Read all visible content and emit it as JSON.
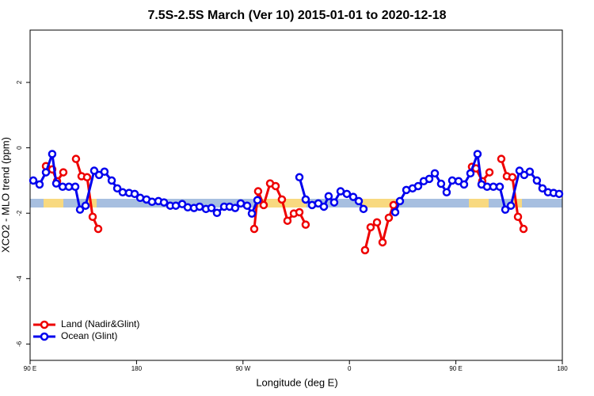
{
  "chart_data": {
    "type": "line",
    "title": "7.5S-2.5S March (Ver 10)   2015-01-01 to 2020-12-18",
    "x_label": "Longitude (deg E)",
    "y_label": "XCO2 - MLO trend (ppm)",
    "xlim": [
      90,
      540
    ],
    "ylim": [
      -6.5,
      3.6
    ],
    "xticks": [
      {
        "value": 90,
        "label": "90 E"
      },
      180,
      {
        "value": 270,
        "label": "90 W"
      },
      {
        "value": 360,
        "label": "0"
      },
      {
        "value": 450,
        "label": "90 E"
      },
      180
    ],
    "yticks": [
      -6,
      -4,
      -2,
      0,
      2
    ],
    "legend": "bottom-left",
    "series": [
      {
        "name": "Land (Nadir&Glint)",
        "color": "#ee0000",
        "x": [
          103.4,
          108.7,
          112.8,
          118.1,
          null,
          128.8,
          133.5,
          138.2,
          142.9,
          147.6,
          null,
          279.5,
          282.8,
          287.5,
          292.9,
          297.6,
          302.9,
          307.6,
          313.0,
          317.7,
          323.0,
          null,
          373.2,
          377.9,
          383.3,
          388.0,
          393.3,
          397.3,
          null,
          463.6,
          467.0,
          472.3,
          478.4,
          null,
          488.4,
          493.1,
          497.8,
          502.5,
          507.2
        ],
        "values": [
          -0.56,
          -0.66,
          -1.02,
          -0.75,
          null,
          -0.34,
          -0.87,
          -0.9,
          -2.11,
          -2.48,
          null,
          -2.48,
          -1.33,
          -1.75,
          -1.09,
          -1.17,
          -1.58,
          -2.23,
          -2.01,
          -1.97,
          -2.35,
          null,
          -3.13,
          -2.43,
          -2.28,
          -2.89,
          -2.14,
          -1.75,
          null,
          -0.58,
          -0.63,
          -1.02,
          -0.75,
          null,
          -0.34,
          -0.87,
          -0.9,
          -2.11,
          -2.48
        ]
      },
      {
        "name": "Ocean (Glint)",
        "color": "#0000ee",
        "x": [
          92.7,
          98.0,
          103.4,
          108.7,
          112.1,
          117.5,
          122.8,
          128.2,
          132.2,
          136.9,
          144.2,
          148.3,
          152.9,
          159.0,
          163.7,
          168.3,
          173.7,
          178.4,
          183.1,
          188.4,
          193.1,
          198.5,
          203.2,
          208.5,
          213.2,
          218.6,
          223.3,
          228.6,
          233.3,
          238.7,
          243.3,
          248.0,
          254.1,
          258.7,
          263.4,
          268.1,
          273.5,
          277.5,
          282.2,
          null,
          317.7,
          323.0,
          328.4,
          333.7,
          338.4,
          342.4,
          347.1,
          352.5,
          357.8,
          363.2,
          367.9,
          371.9,
          null,
          398.7,
          402.7,
          408.1,
          413.4,
          418.1,
          422.8,
          427.5,
          432.2,
          437.5,
          442.2,
          446.9,
          452.3,
          456.9,
          462.3,
          468.3,
          471.7,
          476.4,
          481.7,
          487.1,
          491.8,
          496.5,
          503.8,
          507.8,
          512.5,
          518.5,
          523.2,
          527.9,
          532.6,
          537.3
        ],
        "values": [
          -1.0,
          -1.12,
          -0.75,
          -0.19,
          -1.09,
          -1.19,
          -1.19,
          -1.19,
          -1.89,
          -1.77,
          -0.7,
          -0.83,
          -0.73,
          -1.0,
          -1.24,
          -1.36,
          -1.38,
          -1.41,
          -1.53,
          -1.58,
          -1.65,
          -1.63,
          -1.67,
          -1.77,
          -1.77,
          -1.72,
          -1.82,
          -1.84,
          -1.8,
          -1.87,
          -1.84,
          -1.99,
          -1.8,
          -1.8,
          -1.84,
          -1.7,
          -1.77,
          -2.01,
          -1.6,
          null,
          -0.9,
          -1.58,
          -1.75,
          -1.7,
          -1.8,
          -1.48,
          -1.67,
          -1.33,
          -1.41,
          -1.5,
          -1.63,
          -1.87,
          null,
          -1.97,
          -1.63,
          -1.29,
          -1.24,
          -1.17,
          -1.02,
          -0.95,
          -0.78,
          -1.1,
          -1.36,
          -1.0,
          -1.02,
          -1.12,
          -0.78,
          -0.19,
          -1.12,
          -1.19,
          -1.19,
          -1.19,
          -1.89,
          -1.77,
          -0.7,
          -0.83,
          -0.73,
          -1.0,
          -1.24,
          -1.36,
          -1.38,
          -1.41
        ]
      }
    ]
  }
}
